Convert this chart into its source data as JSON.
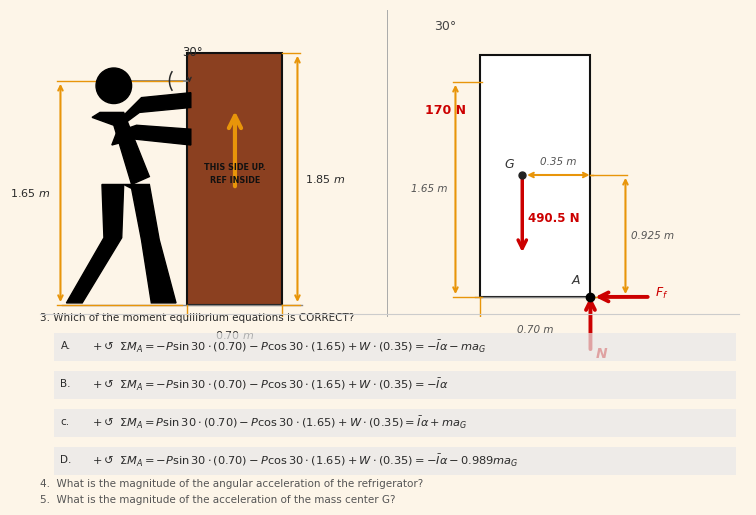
{
  "bg_color": "#fdf5e8",
  "brown": "#8B4020",
  "orange": "#E8950A",
  "red": "#CC0000",
  "dark": "#2a2a2a",
  "gray": "#555555",
  "white": "#ffffff",
  "q3": "3. Which of the moment equilibrium equations is CORRECT?",
  "q4": "4.  What is the magnitude of the angular acceleration of the refrigerator?",
  "q5": "5.  What is the magnitude of the acceleration of the mass center G?",
  "eq_labels": [
    "A.",
    "B.",
    "c.",
    "D."
  ],
  "eqs": [
    "$+\\circlearrowleft\\ \\Sigma M_A = -P\\sin 30\\cdot (0.70) - P\\cos 30\\cdot (1.65) + W\\cdot (0.35) = -\\bar{I}\\alpha - ma_G$",
    "$+\\circlearrowleft\\ \\Sigma M_A = -P\\sin 30\\cdot (0.70) - P\\cos 30\\cdot (1.65) + W\\cdot (0.35) = -\\bar{I}\\alpha$",
    "$+\\circlearrowleft\\ \\Sigma M_A = P\\sin 30\\cdot (0.70) - P\\cos 30\\cdot (1.65) + W\\cdot (0.35) = \\bar{I}\\alpha + ma_G$",
    "$+\\circlearrowleft\\ \\Sigma M_A = -P\\sin 30\\cdot (0.70) - P\\cos 30\\cdot (1.65) + W\\cdot (0.35) = -\\bar{I}\\alpha - 0.989ma_G$"
  ],
  "eq_bg": "#ececec",
  "lbl_185": "1.85 m",
  "lbl_070": "0.70 m",
  "lbl_165_left": "1.65 m",
  "lbl_30_left": "30°",
  "lbl_30_right": "30°",
  "lbl_170N": "170 N",
  "lbl_490N": "490.5 N",
  "lbl_035": "0.35 m",
  "lbl_165_right": "1.65 m",
  "lbl_0925": "0.925 m",
  "lbl_070r": "0.70 m",
  "lbl_G": "G",
  "lbl_A": "A",
  "lbl_Ff": "$F_f$",
  "lbl_N": "N",
  "side_text1": "THIS SIDE UP.",
  "side_text2": "REF INSIDE"
}
